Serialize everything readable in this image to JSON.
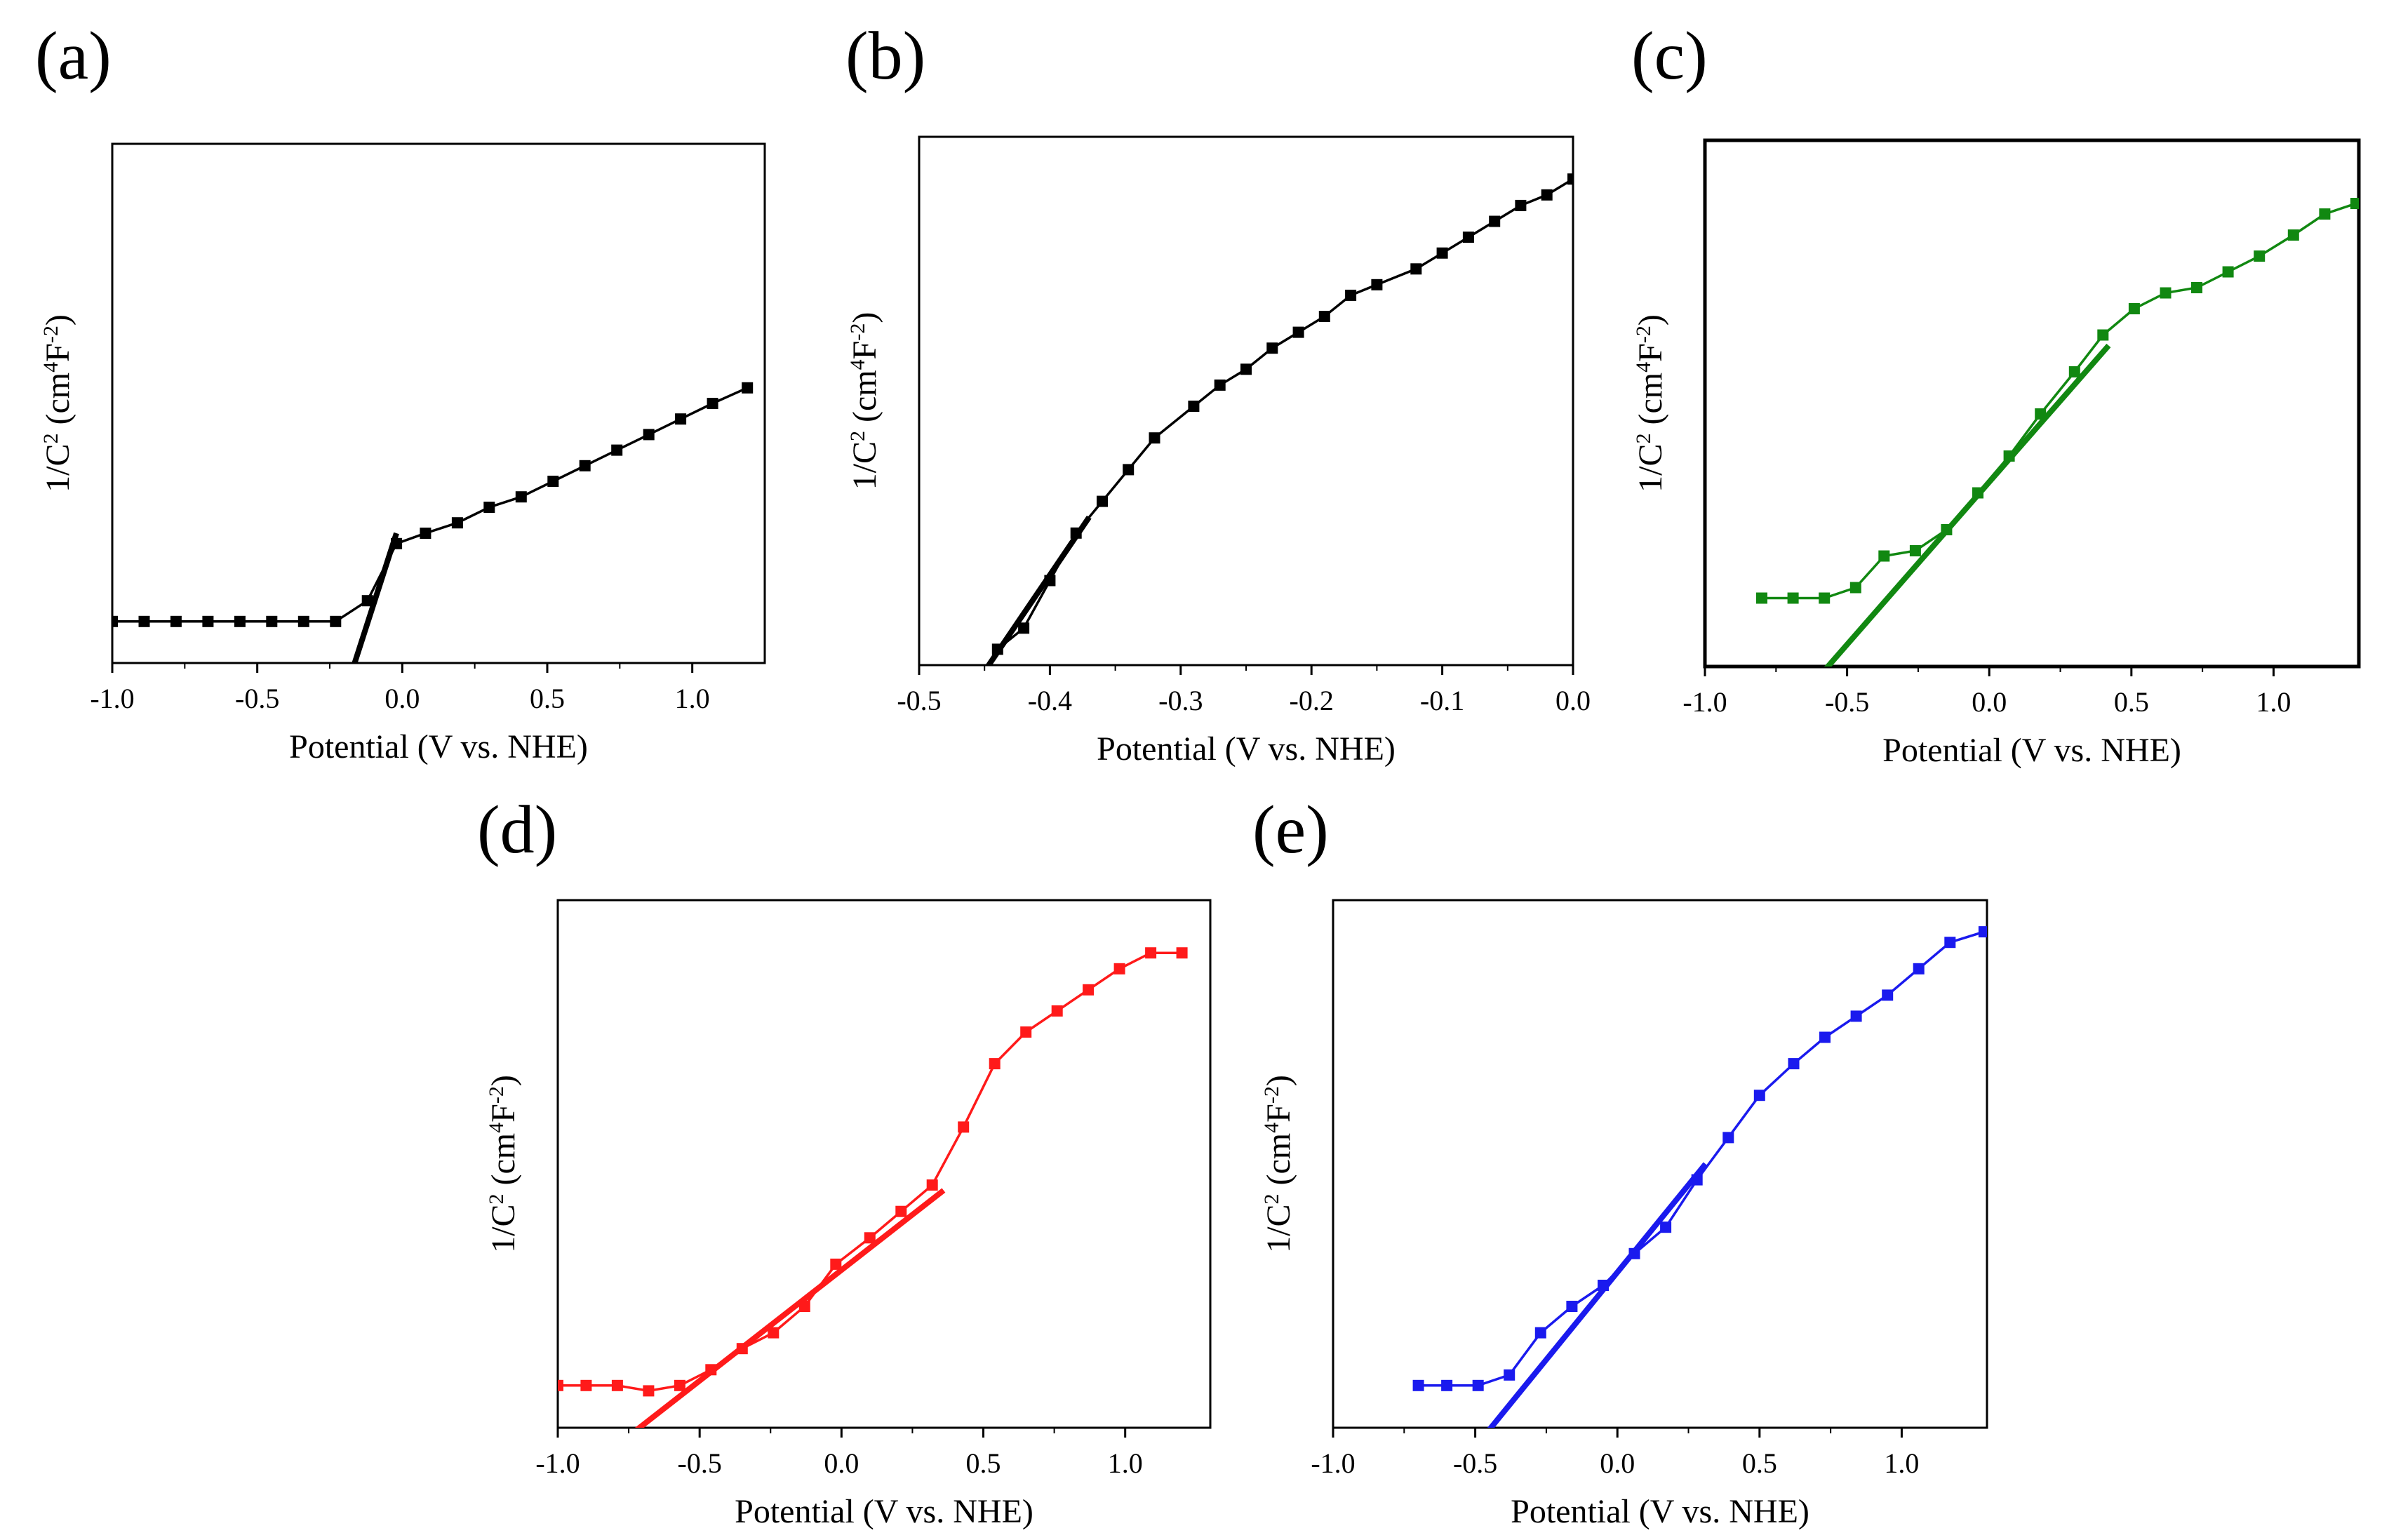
{
  "chart_data": [
    {
      "panel": "(a)",
      "type": "line",
      "xlabel": "Potential (V vs. NHE)",
      "ylabel_main": "1/C",
      "ylabel_sup": "2",
      "ylabel_rest": " (cm",
      "ylabel_sup2": "4",
      "ylabel_end": "F",
      "ylabel_sup3": "-2",
      "ylabel_close": ")",
      "xlim": [
        -1.0,
        1.25
      ],
      "ylim": [
        0,
        1
      ],
      "xticks": [
        -1.0,
        -0.5,
        0.0,
        0.5,
        1.0
      ],
      "xtick_labels": [
        "-1.0",
        "-0.5",
        "0.0",
        "0.5",
        "1.0"
      ],
      "color": "#000000",
      "series": [
        {
          "x": [
            -1.0,
            -0.89,
            -0.78,
            -0.67,
            -0.56,
            -0.45,
            -0.34,
            -0.23,
            -0.12,
            -0.02,
            0.08,
            0.19,
            0.3,
            0.41,
            0.52,
            0.63,
            0.74,
            0.85,
            0.96,
            1.07,
            1.19
          ],
          "y": [
            0.08,
            0.08,
            0.08,
            0.08,
            0.08,
            0.08,
            0.08,
            0.08,
            0.12,
            0.23,
            0.25,
            0.27,
            0.3,
            0.32,
            0.35,
            0.38,
            0.41,
            0.44,
            0.47,
            0.5,
            0.53
          ]
        }
      ],
      "fit": {
        "x": [
          -0.17,
          -0.02
        ],
        "y": [
          -0.01,
          0.25
        ]
      }
    },
    {
      "panel": "(b)",
      "type": "line",
      "xlabel": "Potential (V vs. NHE)",
      "ylabel_main": "1/C",
      "ylabel_sup": "2",
      "ylabel_rest": " (cm",
      "ylabel_sup2": "4",
      "ylabel_end": "F",
      "ylabel_sup3": "-2",
      "ylabel_close": ")",
      "xlim": [
        -0.5,
        0.0
      ],
      "ylim": [
        0,
        1
      ],
      "xticks": [
        -0.5,
        -0.4,
        -0.3,
        -0.2,
        -0.1,
        0.0
      ],
      "xtick_labels": [
        "-0.5",
        "-0.4",
        "-0.3",
        "-0.2",
        "-0.1",
        "0.0"
      ],
      "color": "#000000",
      "series": [
        {
          "x": [
            -0.45,
            -0.44,
            -0.42,
            -0.4,
            -0.38,
            -0.36,
            -0.34,
            -0.32,
            -0.29,
            -0.27,
            -0.25,
            -0.23,
            -0.21,
            -0.19,
            -0.17,
            -0.15,
            -0.12,
            -0.1,
            -0.08,
            -0.06,
            -0.04,
            -0.02,
            0.0
          ],
          "y": [
            -0.01,
            0.03,
            0.07,
            0.16,
            0.25,
            0.31,
            0.37,
            0.43,
            0.49,
            0.53,
            0.56,
            0.6,
            0.63,
            0.66,
            0.7,
            0.72,
            0.75,
            0.78,
            0.81,
            0.84,
            0.87,
            0.89,
            0.92
          ]
        }
      ],
      "fit": {
        "x": [
          -0.455,
          -0.37
        ],
        "y": [
          -0.03,
          0.28
        ]
      }
    },
    {
      "panel": "(c)",
      "type": "line",
      "xlabel": "Potential (V vs. NHE)",
      "ylabel_main": "1/C",
      "ylabel_sup": "2",
      "ylabel_rest": " (cm",
      "ylabel_sup2": "4",
      "ylabel_end": "F",
      "ylabel_sup3": "-2",
      "ylabel_close": ")",
      "xlim": [
        -1.0,
        1.3
      ],
      "ylim": [
        0,
        1
      ],
      "xticks": [
        -1.0,
        -0.5,
        0.0,
        0.5,
        1.0
      ],
      "xtick_labels": [
        "-1.0",
        "-0.5",
        "0.0",
        "0.5",
        "1.0"
      ],
      "color": "#118811",
      "series": [
        {
          "x": [
            -0.8,
            -0.69,
            -0.58,
            -0.47,
            -0.37,
            -0.26,
            -0.15,
            -0.04,
            0.07,
            0.18,
            0.3,
            0.4,
            0.51,
            0.62,
            0.73,
            0.84,
            0.95,
            1.07,
            1.18,
            1.29
          ],
          "y": [
            0.13,
            0.13,
            0.13,
            0.15,
            0.21,
            0.22,
            0.26,
            0.33,
            0.4,
            0.48,
            0.56,
            0.63,
            0.68,
            0.71,
            0.72,
            0.75,
            0.78,
            0.82,
            0.86,
            0.88
          ]
        }
      ],
      "fit": {
        "x": [
          -0.6,
          0.42
        ],
        "y": [
          -0.02,
          0.61
        ]
      }
    },
    {
      "panel": "(d)",
      "type": "line",
      "xlabel": "Potential (V vs. NHE)",
      "ylabel_main": "1/C",
      "ylabel_sup": "2",
      "ylabel_rest": " (cm",
      "ylabel_sup2": "4",
      "ylabel_end": "F",
      "ylabel_sup3": "-2",
      "ylabel_close": ")",
      "xlim": [
        -1.0,
        1.3
      ],
      "ylim": [
        0,
        1
      ],
      "xticks": [
        -1.0,
        -0.5,
        0.0,
        0.5,
        1.0
      ],
      "xtick_labels": [
        "-1.0",
        "-0.5",
        "0.0",
        "0.5",
        "1.0"
      ],
      "color": "#ff1a1a",
      "series": [
        {
          "x": [
            -1.0,
            -0.9,
            -0.79,
            -0.68,
            -0.57,
            -0.46,
            -0.35,
            -0.24,
            -0.13,
            -0.02,
            0.1,
            0.21,
            0.32,
            0.43,
            0.54,
            0.65,
            0.76,
            0.87,
            0.98,
            1.09,
            1.2
          ],
          "y": [
            0.08,
            0.08,
            0.08,
            0.07,
            0.08,
            0.11,
            0.15,
            0.18,
            0.23,
            0.31,
            0.36,
            0.41,
            0.46,
            0.57,
            0.69,
            0.75,
            0.79,
            0.83,
            0.87,
            0.9,
            0.9
          ]
        }
      ],
      "fit": {
        "x": [
          -0.76,
          0.36
        ],
        "y": [
          -0.02,
          0.45
        ]
      }
    },
    {
      "panel": "(e)",
      "type": "line",
      "xlabel": "Potential (V vs. NHE)",
      "ylabel_main": "1/C",
      "ylabel_sup": "2",
      "ylabel_rest": " (cm",
      "ylabel_sup2": "4",
      "ylabel_end": "F",
      "ylabel_sup3": "-2",
      "ylabel_close": ")",
      "xlim": [
        -1.0,
        1.3
      ],
      "ylim": [
        0,
        1
      ],
      "xticks": [
        -1.0,
        -0.5,
        0.0,
        0.5,
        1.0
      ],
      "xtick_labels": [
        "-1.0",
        "-0.5",
        "0.0",
        "0.5",
        "1.0"
      ],
      "color": "#1a1aee",
      "series": [
        {
          "x": [
            -0.7,
            -0.6,
            -0.49,
            -0.38,
            -0.27,
            -0.16,
            -0.05,
            0.06,
            0.17,
            0.28,
            0.39,
            0.5,
            0.62,
            0.73,
            0.84,
            0.95,
            1.06,
            1.17,
            1.29
          ],
          "y": [
            0.08,
            0.08,
            0.08,
            0.1,
            0.18,
            0.23,
            0.27,
            0.33,
            0.38,
            0.47,
            0.55,
            0.63,
            0.69,
            0.74,
            0.78,
            0.82,
            0.87,
            0.92,
            0.94
          ]
        }
      ],
      "fit": {
        "x": [
          -0.46,
          0.31
        ],
        "y": [
          -0.01,
          0.5
        ]
      }
    }
  ]
}
